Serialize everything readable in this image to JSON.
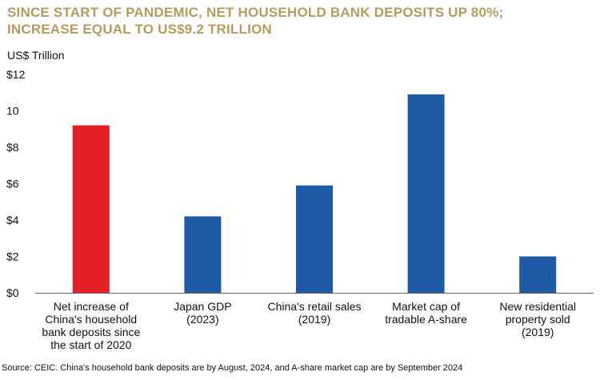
{
  "colors": {
    "title": "#b79a5e",
    "highlight_bar": "#e31e24",
    "bar": "#1f5aa6",
    "axis": "#666666"
  },
  "chart_data": {
    "type": "bar",
    "title_lines": [
      "SINCE START OF PANDEMIC, NET HOUSEHOLD BANK DEPOSITS UP 80%;",
      "INCREASE EQUAL TO US$9.2 TRILLION"
    ],
    "ylabel": "US$ Trillion",
    "ylim": [
      0,
      12
    ],
    "yticks": [
      0,
      2,
      4,
      6,
      8,
      10,
      12
    ],
    "ytick_labels": [
      "$0",
      "$2",
      "$4",
      "$6",
      "$8",
      "10",
      "$12"
    ],
    "categories": [
      [
        "Net increase of",
        "China's household",
        "bank deposits since",
        "the start of 2020"
      ],
      [
        "Japan GDP",
        "(2023)"
      ],
      [
        "China's retail sales",
        "(2019)"
      ],
      [
        "Market cap of",
        "tradable A-share"
      ],
      [
        "New residential",
        "property sold",
        "(2019)"
      ]
    ],
    "values": [
      9.2,
      4.2,
      5.9,
      10.9,
      2.0
    ],
    "highlight_index": 0,
    "grid": false,
    "legend": "none"
  },
  "source": "Source: CEIC. China's household bank deposits are by August, 2024, and A-share market cap are by September 2024"
}
